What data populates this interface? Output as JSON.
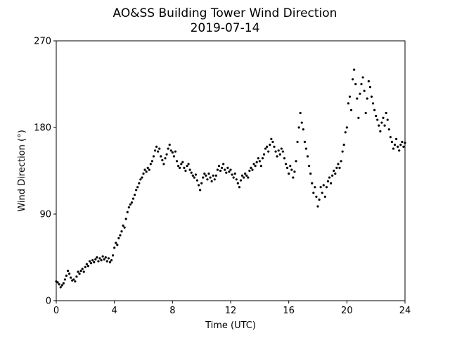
{
  "chart_data": {
    "type": "scatter",
    "title": "AO&SS Building Tower Wind Direction",
    "subtitle": "2019-07-14",
    "x_label": "Time (UTC)",
    "y_label": "Wind Direction (°)",
    "color": "#000000",
    "xlim": [
      0,
      24
    ],
    "xticks": [
      0,
      4,
      8,
      12,
      16,
      20,
      24
    ],
    "ylim": [
      0,
      270
    ],
    "yticks": [
      0,
      90,
      180,
      270
    ],
    "grid": false,
    "x": [
      0,
      0.1,
      0.2,
      0.3,
      0.4,
      0.5,
      0.6,
      0.7,
      0.8,
      0.9,
      1,
      1.1,
      1.2,
      1.3,
      1.4,
      1.5,
      1.6,
      1.7,
      1.8,
      1.9,
      2,
      2.1,
      2.2,
      2.3,
      2.4,
      2.5,
      2.6,
      2.7,
      2.8,
      2.9,
      3,
      3.1,
      3.2,
      3.3,
      3.4,
      3.5,
      3.6,
      3.7,
      3.8,
      3.9,
      4,
      4.1,
      4.2,
      4.3,
      4.4,
      4.5,
      4.6,
      4.7,
      4.8,
      4.9,
      5,
      5.1,
      5.2,
      5.3,
      5.4,
      5.5,
      5.6,
      5.7,
      5.8,
      5.9,
      6,
      6.1,
      6.2,
      6.3,
      6.4,
      6.5,
      6.6,
      6.7,
      6.8,
      6.9,
      7,
      7.1,
      7.2,
      7.3,
      7.4,
      7.5,
      7.6,
      7.7,
      7.8,
      7.9,
      8,
      8.1,
      8.2,
      8.3,
      8.4,
      8.5,
      8.6,
      8.7,
      8.8,
      8.9,
      9,
      9.1,
      9.2,
      9.3,
      9.4,
      9.5,
      9.6,
      9.7,
      9.8,
      9.9,
      10,
      10.1,
      10.2,
      10.3,
      10.4,
      10.5,
      10.6,
      10.7,
      10.8,
      10.9,
      11,
      11.1,
      11.2,
      11.3,
      11.4,
      11.5,
      11.6,
      11.7,
      11.8,
      11.9,
      12,
      12.1,
      12.2,
      12.3,
      12.4,
      12.5,
      12.6,
      12.7,
      12.8,
      12.9,
      13,
      13.1,
      13.2,
      13.3,
      13.4,
      13.5,
      13.6,
      13.7,
      13.8,
      13.9,
      14,
      14.1,
      14.2,
      14.3,
      14.4,
      14.5,
      14.6,
      14.7,
      14.8,
      14.9,
      15,
      15.1,
      15.2,
      15.3,
      15.4,
      15.5,
      15.6,
      15.7,
      15.8,
      15.9,
      16,
      16.1,
      16.2,
      16.3,
      16.4,
      16.5,
      16.6,
      16.7,
      16.8,
      16.9,
      17,
      17.1,
      17.2,
      17.3,
      17.4,
      17.5,
      17.6,
      17.7,
      17.8,
      17.9,
      18,
      18.1,
      18.2,
      18.3,
      18.4,
      18.5,
      18.6,
      18.7,
      18.8,
      18.9,
      19,
      19.1,
      19.2,
      19.3,
      19.4,
      19.5,
      19.6,
      19.7,
      19.8,
      19.9,
      20,
      20.1,
      20.2,
      20.3,
      20.4,
      20.5,
      20.6,
      20.7,
      20.8,
      20.9,
      21,
      21.1,
      21.2,
      21.3,
      21.4,
      21.5,
      21.6,
      21.7,
      21.8,
      21.9,
      22,
      22.1,
      22.2,
      22.3,
      22.4,
      22.5,
      22.6,
      22.7,
      22.8,
      22.9,
      23,
      23.1,
      23.2,
      23.3,
      23.4,
      23.5,
      23.6,
      23.7,
      23.8,
      23.9,
      24
    ],
    "values": [
      20,
      19,
      17,
      14,
      16,
      18,
      22,
      26,
      31,
      28,
      24,
      21,
      22,
      20,
      25,
      30,
      28,
      31,
      33,
      30,
      35,
      38,
      36,
      41,
      39,
      42,
      40,
      43,
      45,
      41,
      44,
      42,
      46,
      43,
      45,
      41,
      44,
      40,
      42,
      47,
      55,
      60,
      58,
      65,
      68,
      72,
      78,
      76,
      85,
      92,
      97,
      100,
      102,
      106,
      110,
      115,
      118,
      122,
      126,
      128,
      132,
      136,
      134,
      138,
      136,
      142,
      145,
      150,
      156,
      160,
      155,
      158,
      150,
      146,
      142,
      148,
      152,
      158,
      162,
      156,
      154,
      150,
      155,
      145,
      140,
      138,
      142,
      144,
      138,
      135,
      140,
      142,
      136,
      133,
      130,
      128,
      131,
      125,
      120,
      115,
      122,
      128,
      132,
      130,
      126,
      132,
      128,
      124,
      130,
      126,
      130,
      136,
      140,
      135,
      138,
      142,
      136,
      133,
      138,
      134,
      136,
      131,
      128,
      132,
      126,
      122,
      118,
      125,
      130,
      128,
      132,
      130,
      128,
      135,
      138,
      136,
      142,
      140,
      144,
      148,
      145,
      140,
      148,
      152,
      158,
      160,
      155,
      162,
      168,
      165,
      160,
      155,
      150,
      156,
      152,
      158,
      155,
      148,
      142,
      138,
      132,
      140,
      136,
      128,
      134,
      145,
      165,
      180,
      195,
      185,
      178,
      165,
      158,
      150,
      140,
      132,
      122,
      112,
      118,
      108,
      98,
      105,
      118,
      112,
      120,
      108,
      118,
      124,
      128,
      122,
      130,
      135,
      132,
      138,
      142,
      138,
      145,
      155,
      162,
      175,
      180,
      205,
      212,
      198,
      230,
      240,
      225,
      210,
      190,
      215,
      225,
      232,
      218,
      195,
      210,
      228,
      222,
      212,
      205,
      198,
      192,
      188,
      182,
      176,
      185,
      190,
      182,
      195,
      188,
      178,
      170,
      165,
      158,
      162,
      168,
      160,
      156,
      162,
      165,
      160,
      164
    ]
  }
}
